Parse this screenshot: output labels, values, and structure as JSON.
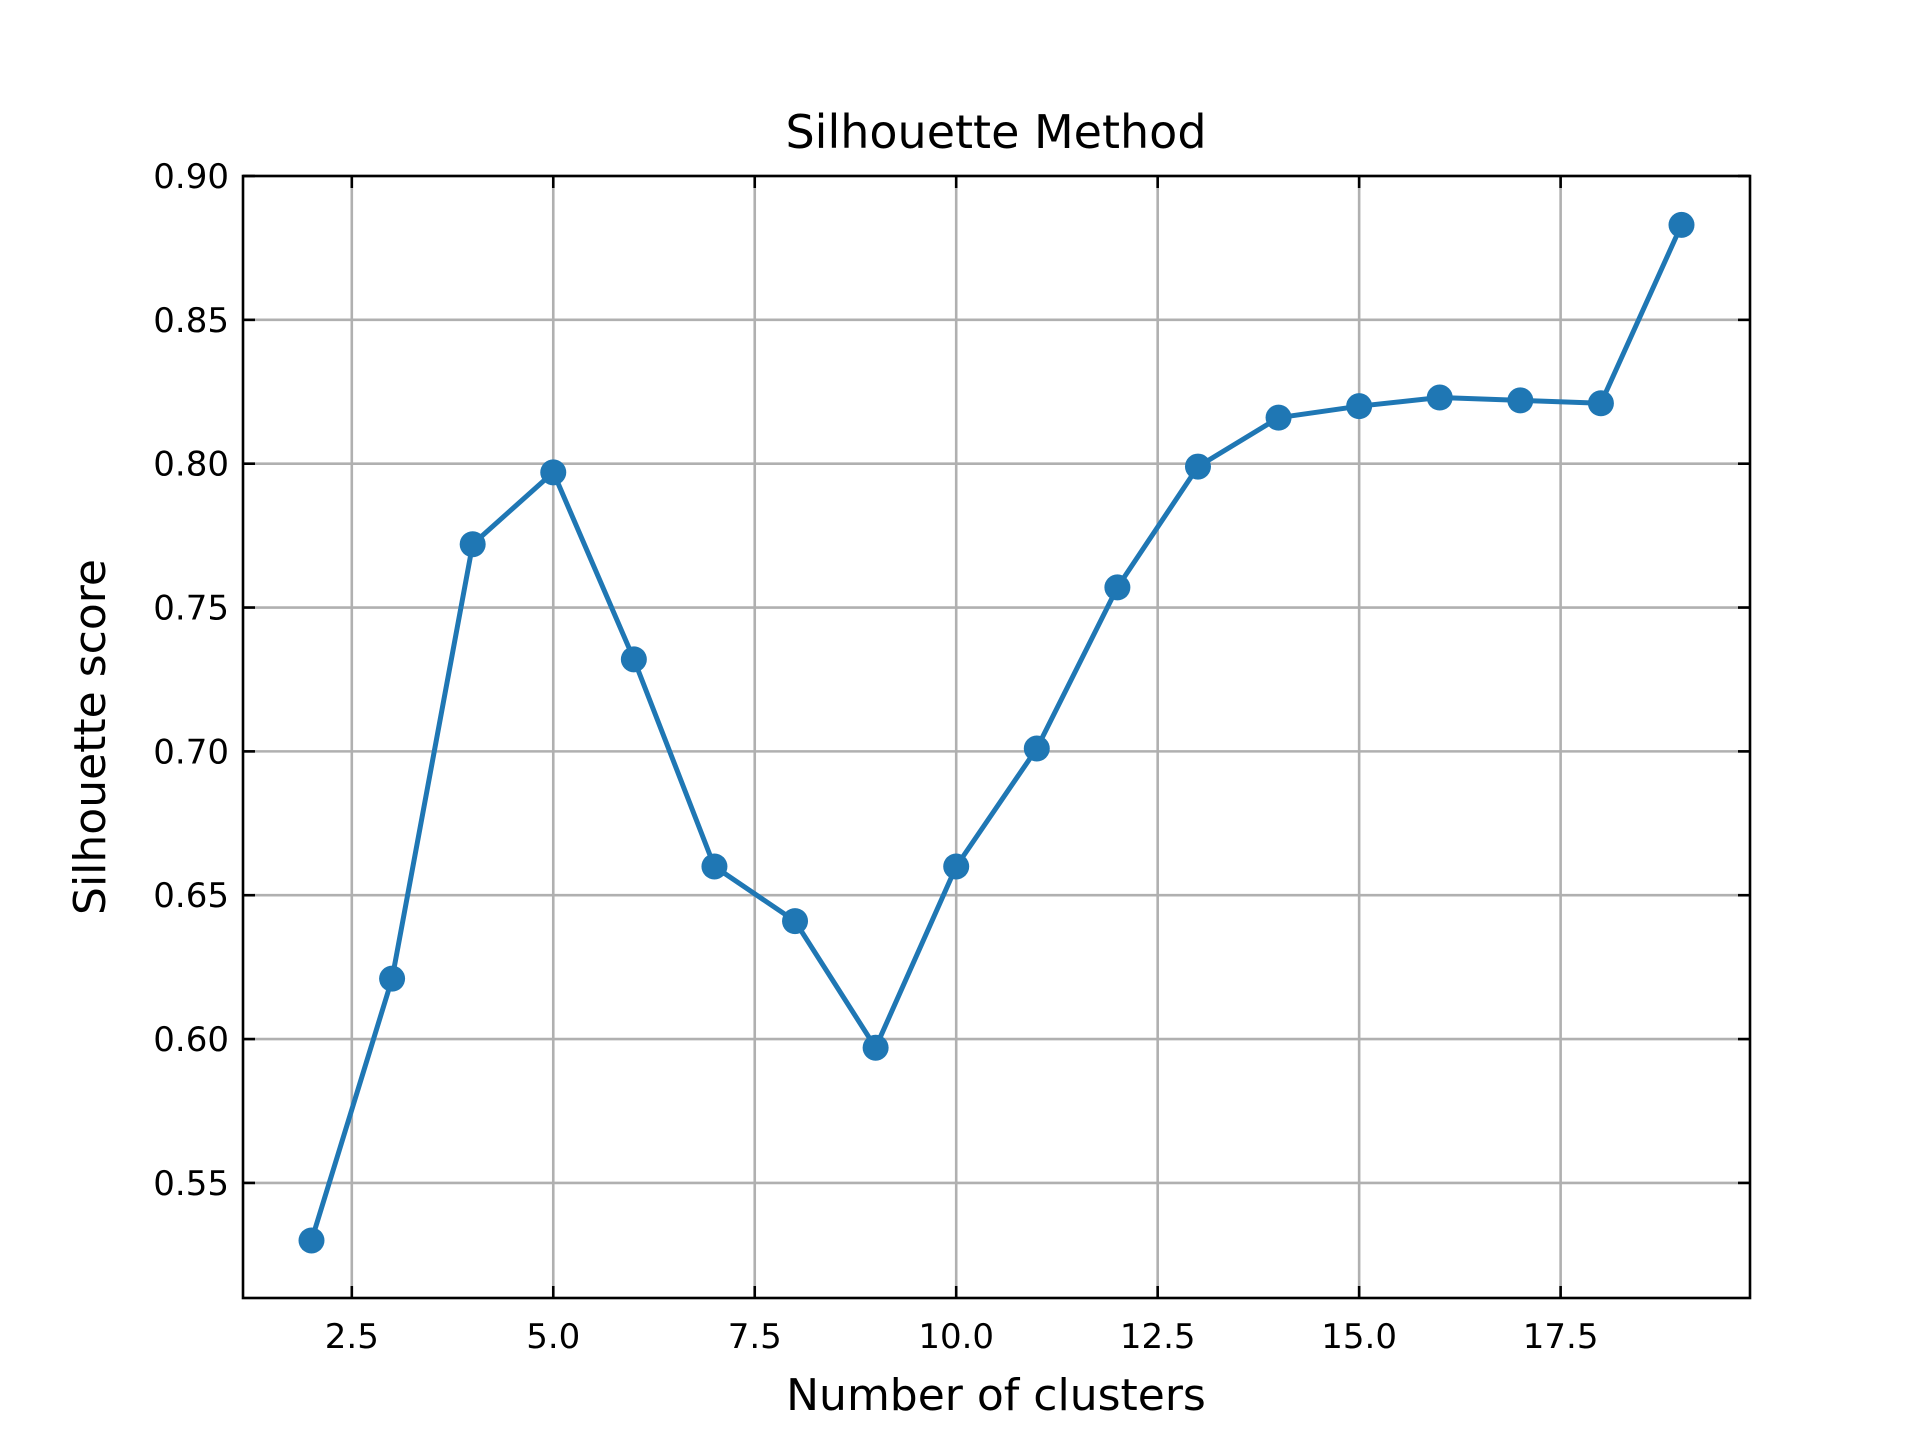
{
  "chart_data": {
    "type": "line",
    "title": "Silhouette Method",
    "xlabel": "Number of clusters",
    "ylabel": "Silhouette score",
    "xlim": [
      1.15,
      19.85
    ],
    "ylim": [
      0.51,
      0.9
    ],
    "xticks": [
      2.5,
      5.0,
      7.5,
      10.0,
      12.5,
      15.0,
      17.5
    ],
    "xtick_labels": [
      "2.5",
      "5.0",
      "7.5",
      "10.0",
      "12.5",
      "15.0",
      "17.5"
    ],
    "yticks": [
      0.55,
      0.6,
      0.65,
      0.7,
      0.75,
      0.8,
      0.85,
      0.9
    ],
    "ytick_labels": [
      "0.55",
      "0.60",
      "0.65",
      "0.70",
      "0.75",
      "0.80",
      "0.85",
      "0.90"
    ],
    "grid": true,
    "tick_direction": "in",
    "series": [
      {
        "color": "#1f77b4",
        "marker": "circle",
        "x": [
          2,
          3,
          4,
          5,
          6,
          7,
          8,
          9,
          10,
          11,
          12,
          13,
          14,
          15,
          16,
          17,
          18,
          19
        ],
        "y": [
          0.53,
          0.621,
          0.772,
          0.797,
          0.732,
          0.66,
          0.641,
          0.597,
          0.66,
          0.701,
          0.757,
          0.799,
          0.816,
          0.82,
          0.823,
          0.822,
          0.821,
          0.883
        ]
      }
    ]
  }
}
